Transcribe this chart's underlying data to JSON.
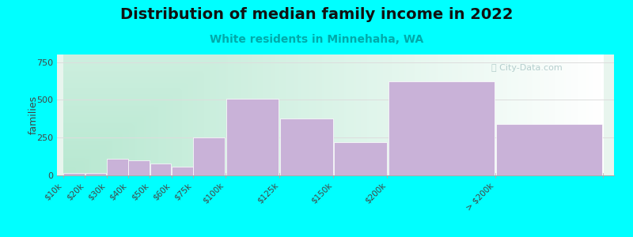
{
  "categories": [
    "$10k",
    "$20k",
    "$30k",
    "$40k",
    "$50k",
    "$60k",
    "$75k",
    "$100k",
    "$125k",
    "$150k",
    "$200k",
    "> $200k"
  ],
  "values": [
    15,
    15,
    110,
    100,
    80,
    60,
    250,
    505,
    375,
    220,
    620,
    340
  ],
  "bar_color": "#c9b2d8",
  "bar_edgecolor": "#c9b2d8",
  "title": "Distribution of median family income in 2022",
  "subtitle": "White residents in Minnehaha, WA",
  "ylabel": "families",
  "ylim": [
    0,
    800
  ],
  "yticks": [
    0,
    250,
    500,
    750
  ],
  "background_color": "#00ffff",
  "grad_color_left": "#b8e8d0",
  "grad_color_right": "#f0f8f0",
  "title_fontsize": 14,
  "subtitle_fontsize": 10,
  "subtitle_color": "#00aaaa",
  "watermark": "City-Data.com",
  "grid_color": "#dddddd",
  "bar_edges": [
    0,
    10,
    20,
    30,
    40,
    50,
    60,
    75,
    100,
    125,
    150,
    200,
    250
  ],
  "tick_positions": [
    0,
    10,
    20,
    30,
    40,
    50,
    60,
    75,
    100,
    125,
    150,
    200,
    250
  ]
}
